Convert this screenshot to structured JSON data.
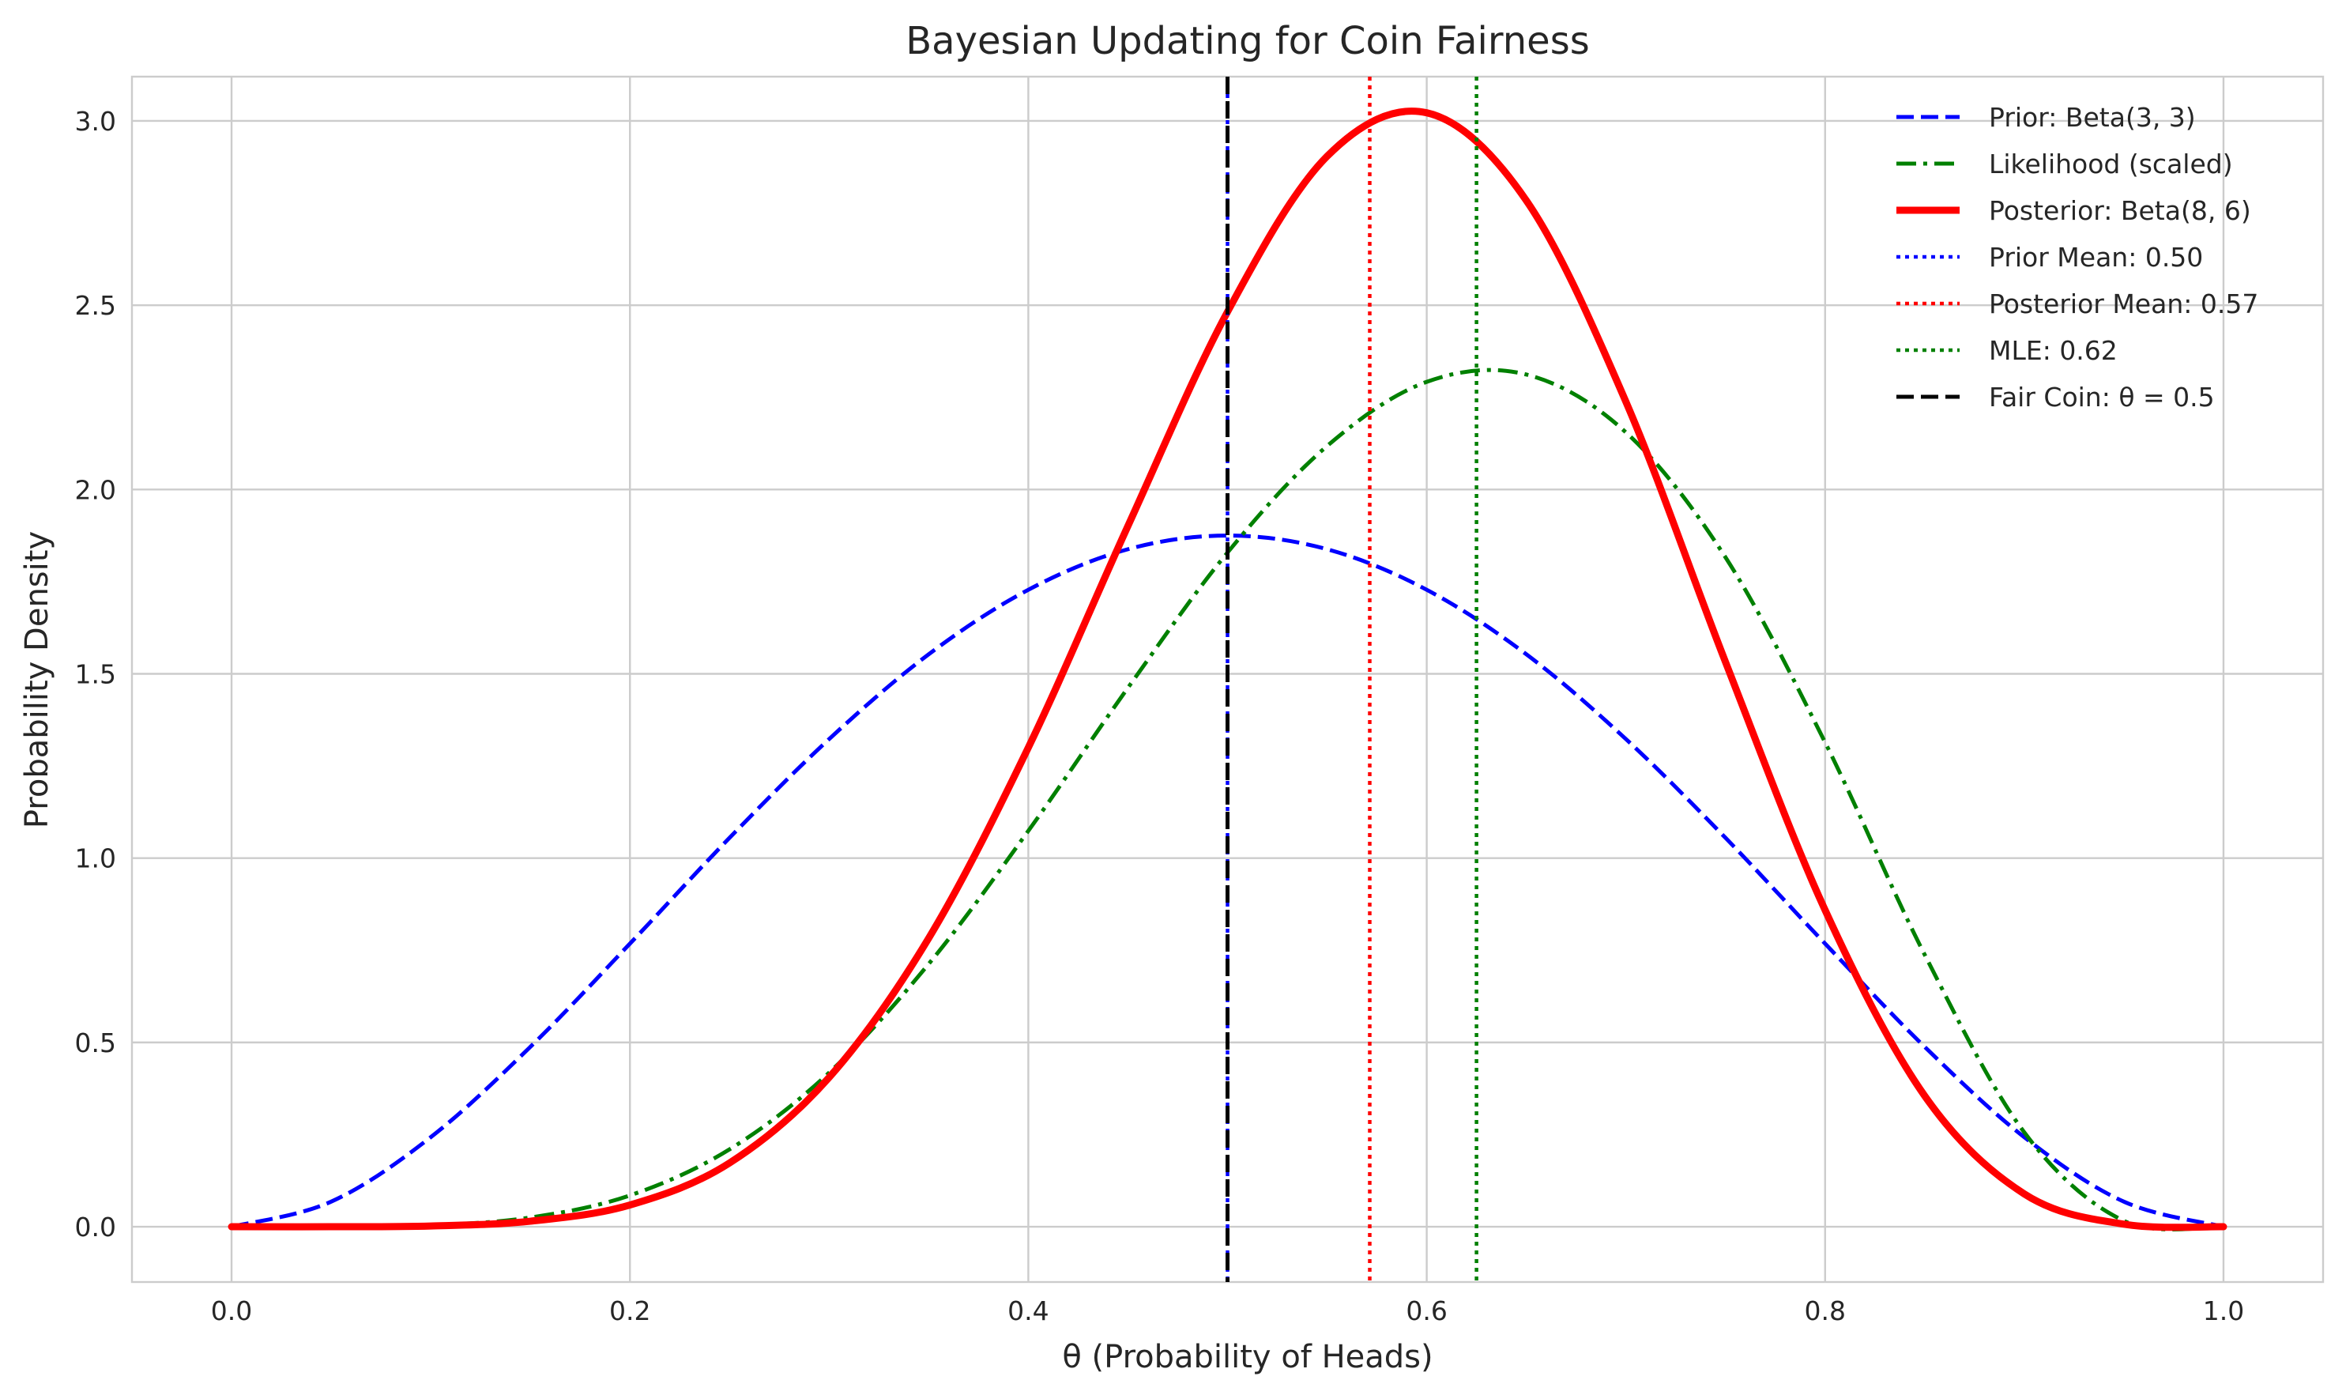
{
  "chart_data": {
    "type": "line",
    "title": "Bayesian Updating for Coin Fairness",
    "xlabel": "θ (Probability of Heads)",
    "ylabel": "Probability Density",
    "xlim": [
      -0.05,
      1.05
    ],
    "ylim": [
      -0.15,
      3.12
    ],
    "grid": true,
    "legend_position": "top-right",
    "x_ticks": [
      0.0,
      0.2,
      0.4,
      0.6,
      0.8,
      1.0
    ],
    "x_tick_labels": [
      "0.0",
      "0.2",
      "0.4",
      "0.6",
      "0.8",
      "1.0"
    ],
    "y_ticks": [
      0.0,
      0.5,
      1.0,
      1.5,
      2.0,
      2.5,
      3.0
    ],
    "y_tick_labels": [
      "0.0",
      "0.5",
      "1.0",
      "1.5",
      "2.0",
      "2.5",
      "3.0"
    ],
    "x": [
      0.0,
      0.05,
      0.1,
      0.15,
      0.2,
      0.25,
      0.3,
      0.35,
      0.4,
      0.45,
      0.5,
      0.55,
      0.6,
      0.65,
      0.7,
      0.75,
      0.8,
      0.85,
      0.9,
      0.95,
      1.0
    ],
    "series": [
      {
        "name": "Prior: Beta(3, 3)",
        "color": "#0000ff",
        "style": "dashed",
        "values": [
          0.0,
          0.068,
          0.243,
          0.488,
          0.768,
          1.055,
          1.323,
          1.553,
          1.728,
          1.838,
          1.875,
          1.838,
          1.728,
          1.553,
          1.323,
          1.055,
          0.768,
          0.488,
          0.243,
          0.068,
          0.0
        ]
      },
      {
        "name": "Likelihood (scaled)",
        "color": "#008000",
        "style": "dashdot",
        "values": [
          0.0,
          0.0,
          0.004,
          0.025,
          0.085,
          0.21,
          0.418,
          0.713,
          1.074,
          1.462,
          1.829,
          2.118,
          2.292,
          2.312,
          2.155,
          1.816,
          1.314,
          0.738,
          0.256,
          0.016,
          0.0
        ]
      },
      {
        "name": "Posterior: Beta(8, 6)",
        "color": "#ff0000",
        "style": "solid",
        "values": [
          0.0,
          0.0,
          0.002,
          0.015,
          0.059,
          0.173,
          0.405,
          0.783,
          1.3,
          1.901,
          2.482,
          2.904,
          3.022,
          2.784,
          2.238,
          1.532,
          0.859,
          0.355,
          0.089,
          0.007,
          0.0
        ]
      }
    ],
    "vlines": [
      {
        "name": "Prior Mean: 0.50",
        "x": 0.5,
        "color": "#0000ff",
        "style": "dotted"
      },
      {
        "name": "Posterior Mean: 0.57",
        "x": 0.5714,
        "color": "#ff0000",
        "style": "dotted"
      },
      {
        "name": "MLE: 0.62",
        "x": 0.625,
        "color": "#008000",
        "style": "dotted"
      },
      {
        "name": "Fair Coin: θ = 0.5",
        "x": 0.5,
        "color": "#000000",
        "style": "dashed"
      }
    ]
  }
}
